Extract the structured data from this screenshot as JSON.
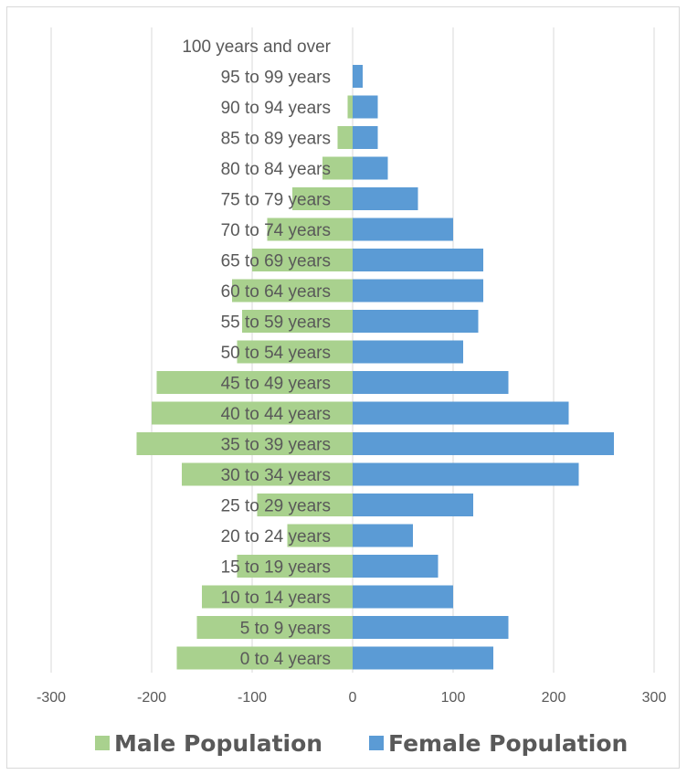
{
  "chart_data": {
    "type": "bar",
    "orientation": "horizontal",
    "categories": [
      "0 to 4 years",
      "5 to 9 years",
      "10 to 14 years",
      "15 to 19 years",
      "20 to 24 years",
      "25 to 29 years",
      "30 to 34 years",
      "35 to 39 years",
      "40 to 44 years",
      "45 to 49 years",
      "50 to 54 years",
      "55 to 59 years",
      "60 to 64 years",
      "65 to 69 years",
      "70 to 74 years",
      "75 to 79 years",
      "80 to 84 years",
      "85 to 89 years",
      "90 to 94 years",
      "95 to 99 years",
      "100 years and over"
    ],
    "series": [
      {
        "name": "Male Population",
        "color": "#a9d18e",
        "values": [
          -175,
          -155,
          -150,
          -115,
          -65,
          -95,
          -170,
          -215,
          -200,
          -195,
          -115,
          -110,
          -120,
          -100,
          -85,
          -60,
          -30,
          -15,
          -5,
          0,
          0
        ]
      },
      {
        "name": "Female Population",
        "color": "#5b9bd5",
        "values": [
          140,
          155,
          100,
          85,
          60,
          120,
          225,
          260,
          215,
          155,
          110,
          125,
          130,
          130,
          100,
          65,
          35,
          25,
          25,
          10,
          0
        ]
      }
    ],
    "xlim": [
      -300,
      300
    ],
    "xticks": [
      -300,
      -200,
      -100,
      0,
      100,
      200,
      300
    ],
    "xtick_labels": [
      "-300",
      "-200",
      "-100",
      "0",
      "100",
      "200",
      "300"
    ],
    "grid": true,
    "legend_position": "bottom",
    "title": "",
    "xlabel": "",
    "ylabel": ""
  }
}
